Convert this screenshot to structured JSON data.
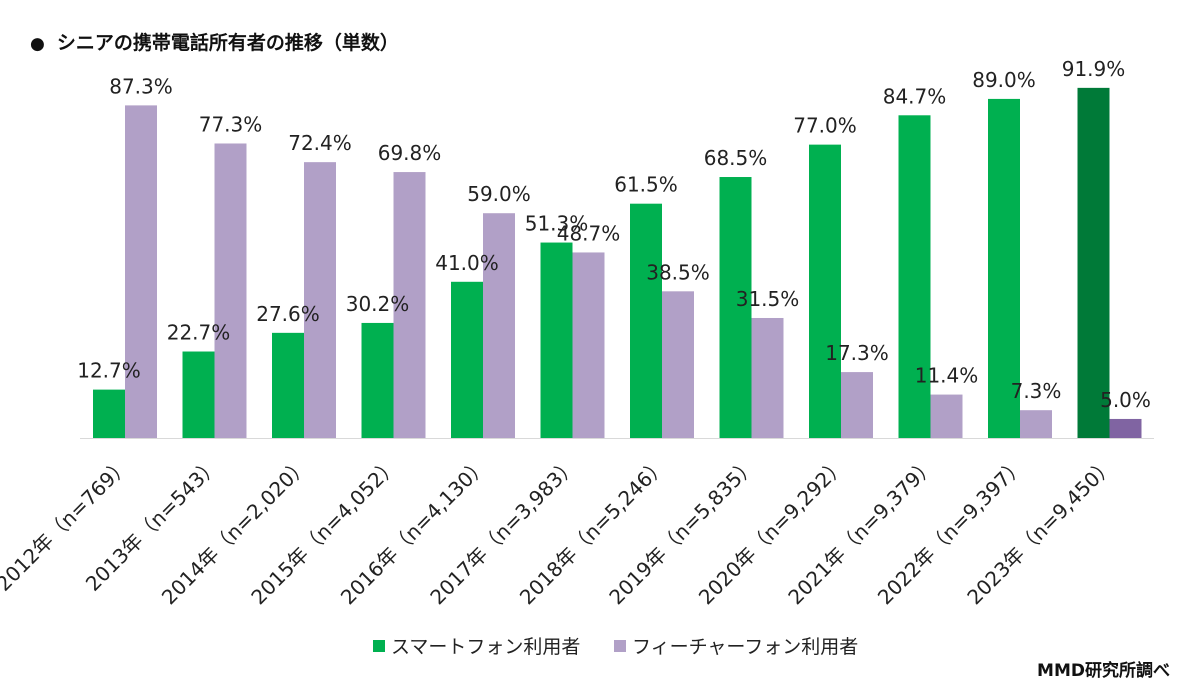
{
  "title": "シニアの携帯電話所有者の推移（単数）",
  "title_bullet": "●",
  "source": "MMD研究所調べ",
  "colors": {
    "smartphone": "#00b050",
    "feature_phone": "#b1a0c7",
    "smartphone_highlight": "#007a38",
    "feature_phone_highlight": "#8064a2"
  },
  "chart_data": {
    "type": "bar",
    "title": "シニアの携帯電話所有者の推移（単数）",
    "xlabel": "",
    "ylabel": "",
    "ylim": [
      0,
      100
    ],
    "grid": false,
    "legend_position": "bottom",
    "categories": [
      "2012年（n=769）",
      "2013年（n=543）",
      "2014年（n=2,020）",
      "2015年（n=4,052）",
      "2016年（n=4,130）",
      "2017年（n=3,983）",
      "2018年（n=5,246）",
      "2019年（n=5,835）",
      "2020年（n=9,292）",
      "2021年（n=9,379）",
      "2022年（n=9,397）",
      "2023年（n=9,450）"
    ],
    "series": [
      {
        "name": "スマートフォン利用者",
        "values": [
          12.7,
          22.7,
          27.6,
          30.2,
          41.0,
          51.3,
          61.5,
          68.5,
          77.0,
          84.7,
          89.0,
          91.9
        ],
        "labels": [
          "12.7%",
          "22.7%",
          "27.6%",
          "30.2%",
          "41.0%",
          "51.3%",
          "61.5%",
          "68.5%",
          "77.0%",
          "84.7%",
          "89.0%",
          "91.9%"
        ]
      },
      {
        "name": "フィーチャーフォン利用者",
        "values": [
          87.3,
          77.3,
          72.4,
          69.8,
          59.0,
          48.7,
          38.5,
          31.5,
          17.3,
          11.4,
          7.3,
          5.0
        ],
        "labels": [
          "87.3%",
          "77.3%",
          "72.4%",
          "69.8%",
          "59.0%",
          "48.7%",
          "38.5%",
          "31.5%",
          "17.3%",
          "11.4%",
          "7.3%",
          "5.0%"
        ]
      }
    ]
  }
}
